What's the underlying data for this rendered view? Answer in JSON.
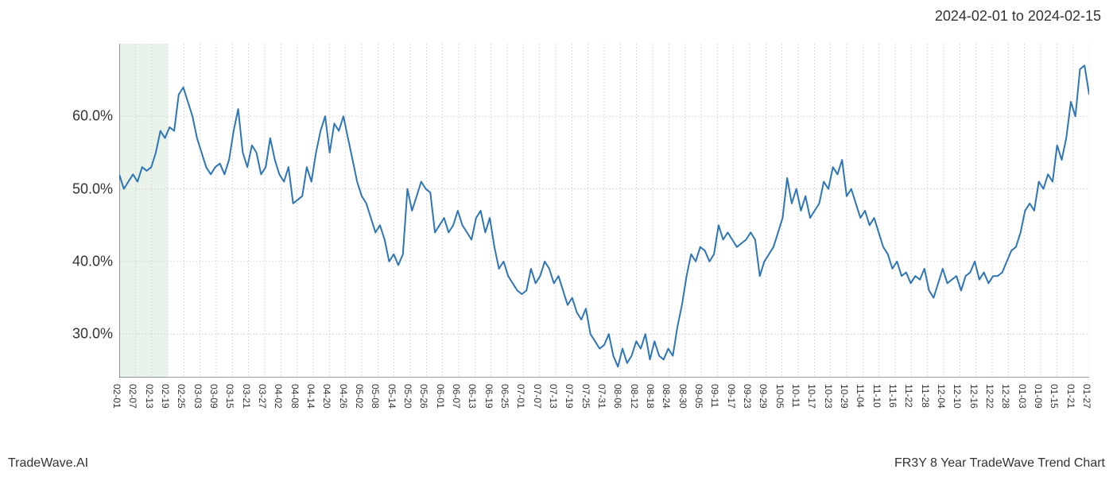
{
  "header": {
    "date_range": "2024-02-01 to 2024-02-15"
  },
  "footer": {
    "brand": "TradeWave.AI",
    "chart_title": "FR3Y 8 Year TradeWave Trend Chart"
  },
  "chart": {
    "type": "line",
    "background_color": "#ffffff",
    "line_color": "#2e75b6",
    "grid_color": "#cccccc",
    "axis_color": "#333333",
    "highlight_color": "#d4e8d4",
    "highlight_opacity": 0.5,
    "highlight_start_idx": 0,
    "highlight_end_idx": 3,
    "ylim": [
      24,
      70
    ],
    "yticks": [
      30,
      40,
      50,
      60
    ],
    "ytick_labels": [
      "30.0%",
      "40.0%",
      "50.0%",
      "60.0%"
    ],
    "x_labels": [
      "02-01",
      "02-07",
      "02-13",
      "02-19",
      "02-25",
      "03-03",
      "03-09",
      "03-15",
      "03-21",
      "03-27",
      "04-02",
      "04-08",
      "04-14",
      "04-20",
      "04-26",
      "05-02",
      "05-08",
      "05-14",
      "05-20",
      "05-26",
      "06-01",
      "06-07",
      "06-13",
      "06-19",
      "06-25",
      "07-01",
      "07-07",
      "07-13",
      "07-19",
      "07-25",
      "07-31",
      "08-06",
      "08-12",
      "08-18",
      "08-24",
      "08-30",
      "09-05",
      "09-11",
      "09-17",
      "09-23",
      "09-29",
      "10-05",
      "10-11",
      "10-17",
      "10-23",
      "10-29",
      "11-04",
      "11-10",
      "11-16",
      "11-22",
      "11-28",
      "12-04",
      "12-10",
      "12-16",
      "12-22",
      "12-28",
      "01-03",
      "01-09",
      "01-15",
      "01-21",
      "01-27"
    ],
    "values": [
      52,
      50,
      51,
      52,
      51,
      53,
      52.5,
      53,
      55,
      58,
      57,
      58.5,
      58,
      63,
      64,
      62,
      60,
      57,
      55,
      53,
      52,
      53,
      53.5,
      52,
      54,
      58,
      61,
      55,
      53,
      56,
      55,
      52,
      53,
      57,
      54,
      52,
      51,
      53,
      48,
      48.5,
      49,
      53,
      51,
      55,
      58,
      60,
      55,
      59,
      58,
      60,
      57,
      54,
      51,
      49,
      48,
      46,
      44,
      45,
      43,
      40,
      41,
      39.5,
      41,
      50,
      47,
      49,
      51,
      50,
      49.5,
      44,
      45,
      46,
      44,
      45,
      47,
      45,
      44,
      43,
      46,
      47,
      44,
      46,
      42,
      39,
      40,
      38,
      37,
      36,
      35.5,
      36,
      39,
      37,
      38,
      40,
      39,
      37,
      38,
      36,
      34,
      35,
      33,
      32,
      33.5,
      30,
      29,
      28,
      28.5,
      30,
      27,
      25.5,
      28,
      26,
      27,
      29,
      28,
      30,
      26.5,
      29,
      27,
      26.5,
      28,
      27,
      31,
      34,
      38,
      41,
      40,
      42,
      41.5,
      40,
      41,
      45,
      43,
      44,
      43,
      42,
      42.5,
      43,
      44,
      43,
      38,
      40,
      41,
      42,
      44,
      46,
      51.5,
      48,
      50,
      47,
      49,
      46,
      47,
      48,
      51,
      50,
      53,
      52,
      54,
      49,
      50,
      48,
      46,
      47,
      45,
      46,
      44,
      42,
      41,
      39,
      40,
      38,
      38.5,
      37,
      38,
      37.5,
      39,
      36,
      35,
      37,
      39,
      37,
      37.5,
      38,
      36,
      38,
      38.5,
      40,
      37.5,
      38.5,
      37,
      38,
      38,
      38.5,
      40,
      41.5,
      42,
      44,
      47,
      48,
      47,
      51,
      50,
      52,
      51,
      56,
      54,
      57,
      62,
      60,
      66.5,
      67,
      63
    ],
    "line_width": 2,
    "title_fontsize": 18,
    "label_fontsize": 18,
    "xtick_fontsize": 12
  }
}
